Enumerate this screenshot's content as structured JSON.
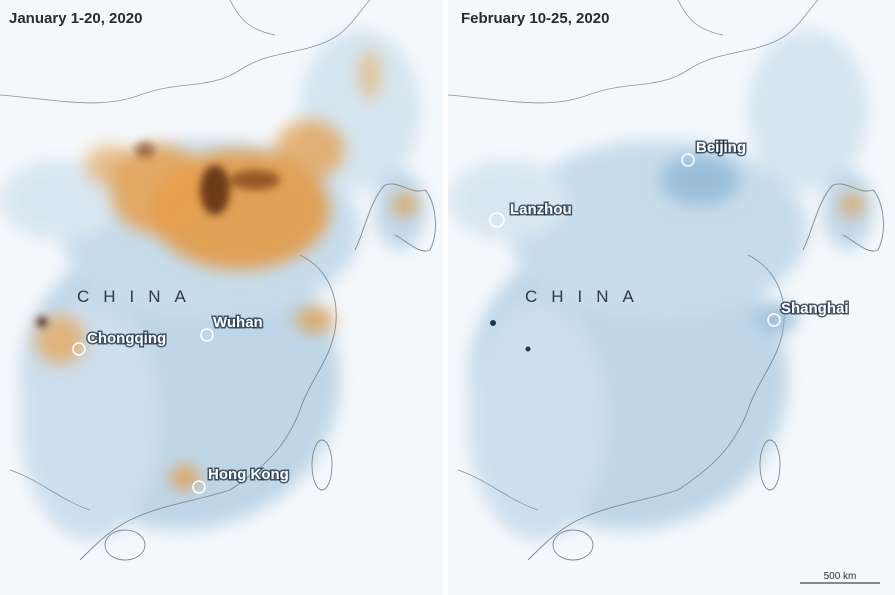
{
  "panels": [
    {
      "title": "January 1-20, 2020",
      "country": "CHINA",
      "cities": [
        "Chongqing",
        "Wuhan",
        "Hong Kong"
      ]
    },
    {
      "title": "February 10-25, 2020",
      "country": "CHINA",
      "cities": [
        "Beijing",
        "Lanzhou",
        "Shanghai"
      ]
    }
  ],
  "scale": "500 km"
}
